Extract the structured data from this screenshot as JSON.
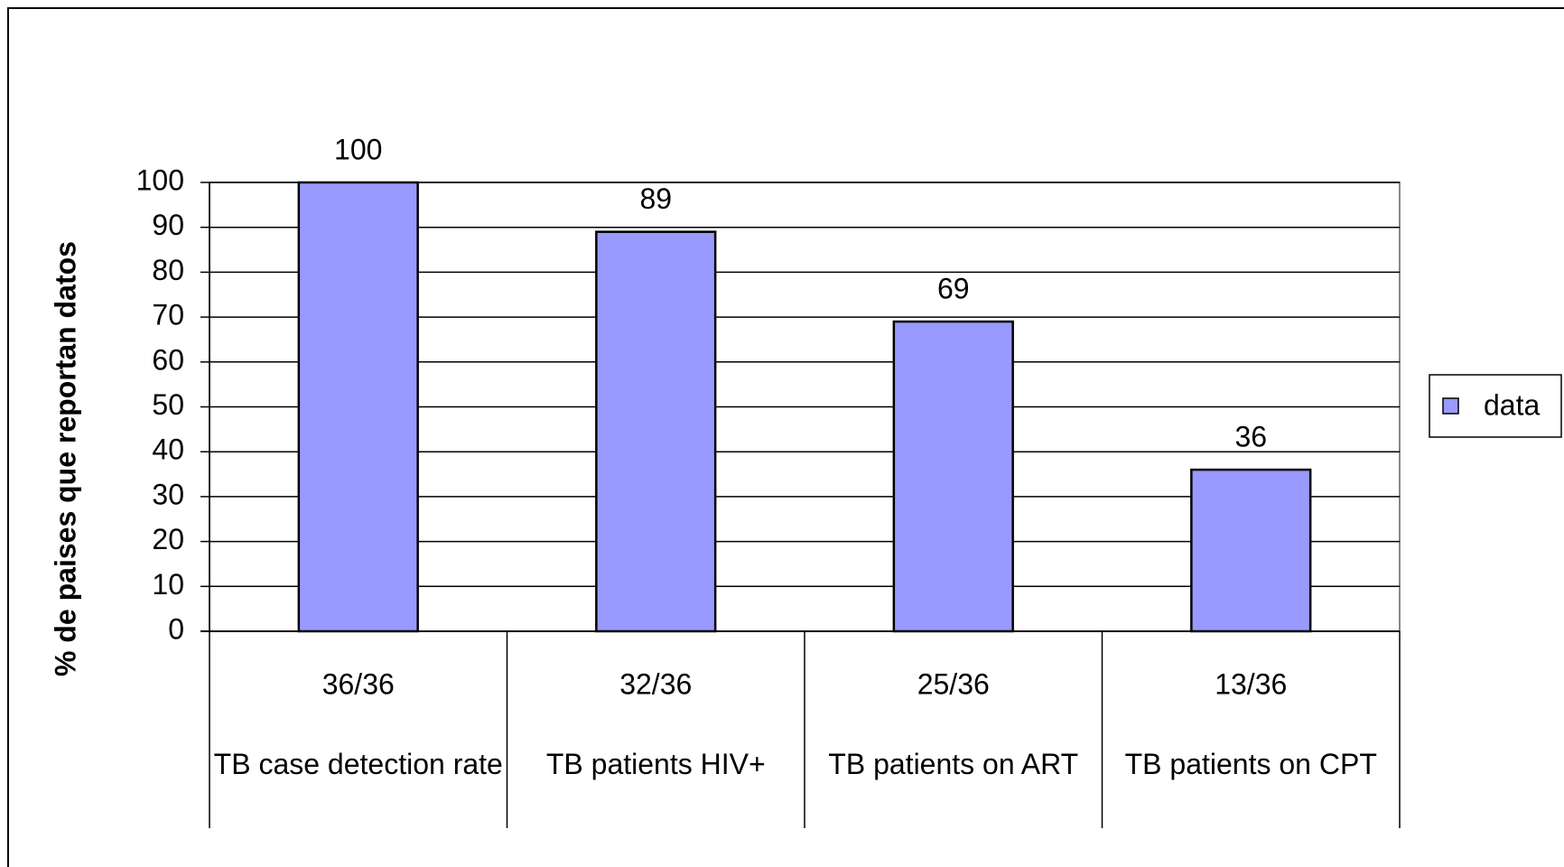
{
  "chart_data": {
    "type": "bar",
    "y_label": "% de paises que reportan datos",
    "categories": [
      "36/36",
      "32/36",
      "25/36",
      "13/36"
    ],
    "category_groups": [
      "TB case detection rate",
      "TB patients HIV+",
      "TB patients on ART",
      "TB patients on CPT"
    ],
    "series": [
      {
        "name": "data",
        "color": "#9999ff",
        "values": [
          100,
          89,
          69,
          36
        ]
      }
    ],
    "ylim": [
      0,
      100
    ],
    "yticks": [
      0,
      10,
      20,
      30,
      40,
      50,
      60,
      70,
      80,
      90,
      100
    ],
    "grid": true,
    "legend": "right"
  }
}
